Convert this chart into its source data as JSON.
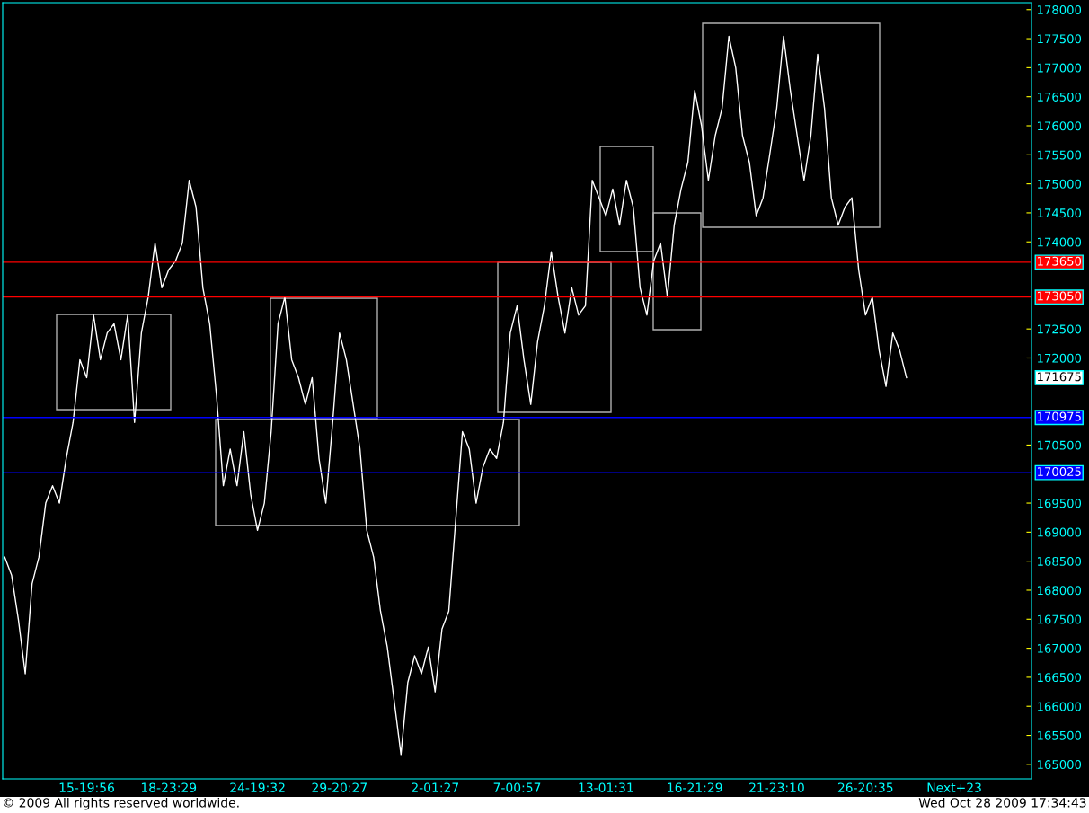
{
  "chart_data": {
    "type": "line",
    "categories": [
      null,
      null,
      null,
      null,
      null,
      null,
      null,
      null,
      null,
      null,
      null,
      null,
      "15-19:56",
      null,
      null,
      null,
      null,
      null,
      null,
      null,
      null,
      null,
      null,
      null,
      "18-23:29",
      null,
      null,
      null,
      null,
      null,
      null,
      null,
      null,
      null,
      null,
      null,
      null,
      "24-19:32",
      null,
      null,
      null,
      null,
      null,
      null,
      null,
      null,
      null,
      null,
      null,
      "29-20:27",
      null,
      null,
      null,
      null,
      null,
      null,
      null,
      null,
      null,
      null,
      null,
      null,
      null,
      "2-01:27",
      null,
      null,
      null,
      null,
      null,
      null,
      null,
      null,
      null,
      null,
      null,
      "7-00:57",
      null,
      null,
      null,
      null,
      null,
      null,
      null,
      null,
      null,
      null,
      null,
      null,
      "13-01:31",
      null,
      null,
      null,
      null,
      null,
      null,
      null,
      null,
      null,
      null,
      null,
      null,
      "16-21:29",
      null,
      null,
      null,
      null,
      null,
      null,
      null,
      null,
      null,
      null,
      null,
      "21-23:10",
      null,
      null,
      null,
      null,
      null,
      null,
      null,
      null,
      null,
      null,
      null,
      null,
      "26-20:35",
      null,
      null,
      null,
      null,
      null,
      null,
      null,
      null,
      null,
      null,
      null,
      null,
      "Next+23",
      null,
      null,
      null,
      null,
      null,
      null,
      null,
      null,
      null,
      null,
      null
    ],
    "series": [
      {
        "color": "#ffffff",
        "values": [
          168570,
          168260,
          167490,
          166560,
          168110,
          168570,
          169500,
          169800,
          169500,
          170270,
          170890,
          171970,
          171660,
          172740,
          171970,
          172430,
          172590,
          171970,
          172740,
          170890,
          172430,
          173050,
          173980,
          173210,
          173520,
          173670,
          173980,
          175060,
          174600,
          173210,
          172590,
          171350,
          169800,
          170430,
          169800,
          170730,
          169650,
          169030,
          169500,
          170730,
          172590,
          173050,
          171970,
          171660,
          171200,
          171660,
          170270,
          169500,
          170890,
          172430,
          171970,
          171200,
          170430,
          169030,
          168570,
          167640,
          167020,
          166100,
          165170,
          166410,
          166870,
          166560,
          167020,
          166250,
          167330,
          167640,
          169190,
          170730,
          170430,
          169500,
          170120,
          170430,
          170270,
          170890,
          172430,
          172900,
          171970,
          171200,
          172280,
          172900,
          173830,
          173050,
          172430,
          173210,
          172740,
          172900,
          175060,
          174760,
          174450,
          174910,
          174290,
          175060,
          174600,
          173210,
          172740,
          173670,
          173980,
          173050,
          174290,
          174910,
          175370,
          176610,
          176000,
          175060,
          175830,
          176300,
          177540,
          177000,
          175830,
          175370,
          174450,
          174760,
          175520,
          176300,
          177540,
          176610,
          175830,
          175060,
          175830,
          177230,
          176300,
          174760,
          174290,
          174600,
          174760,
          173520,
          172740,
          173050,
          172130,
          171510,
          172430,
          172130,
          171660,
          null,
          null,
          null,
          null,
          null,
          null,
          null,
          null,
          null,
          null,
          null,
          null,
          null,
          null,
          null,
          null,
          null,
          null
        ]
      }
    ],
    "ylim": [
      164750,
      178120
    ],
    "yticks": [
      165000,
      165500,
      166000,
      166500,
      167000,
      167500,
      168000,
      168500,
      169000,
      169500,
      170500,
      172000,
      172500,
      174000,
      174500,
      175000,
      175500,
      176000,
      176500,
      177000,
      177500,
      178000
    ],
    "ref_lines": [
      {
        "axis": "y",
        "value": 173650,
        "label": "173650",
        "color": "#ff0000"
      },
      {
        "axis": "y",
        "value": 173050,
        "label": "173050",
        "color": "#ff0000"
      },
      {
        "axis": "y",
        "value": 170975,
        "label": "170975",
        "color": "#0000ff"
      },
      {
        "axis": "y",
        "value": 170025,
        "label": "170025",
        "color": "#0000ff"
      }
    ],
    "annotations": [
      "171675",
      "© 2009 All rights reserved worldwide.",
      "Wed Oct 28 2009 17:34:43"
    ],
    "grid": false,
    "legend": false,
    "line_style": "solid",
    "marker": "none"
  }
}
